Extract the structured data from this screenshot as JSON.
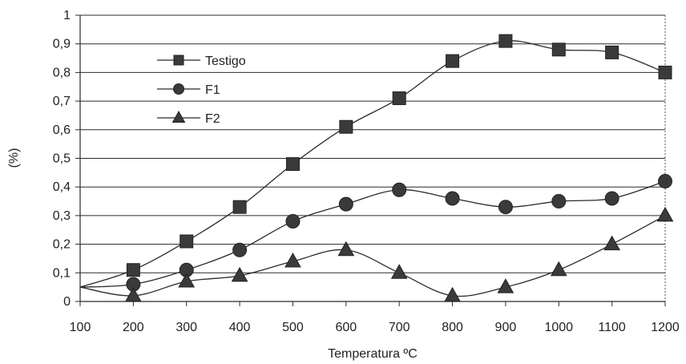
{
  "chart_data": {
    "type": "line",
    "xlabel": "Temperatura ºC",
    "ylabel": "(%)",
    "x": [
      100,
      200,
      300,
      400,
      500,
      600,
      700,
      800,
      900,
      1000,
      1100,
      1200
    ],
    "xlim": [
      100,
      1200
    ],
    "ylim": [
      0,
      1
    ],
    "x_ticks": [
      "100",
      "200",
      "300",
      "400",
      "500",
      "600",
      "700",
      "800",
      "900",
      "1000",
      "1100",
      "1200"
    ],
    "y_ticks": [
      "0",
      "0,1",
      "0,2",
      "0,3",
      "0,4",
      "0,5",
      "0,6",
      "0,7",
      "0,8",
      "0,9",
      "1"
    ],
    "grid": "horizontal",
    "legend_position": "top-left",
    "series": [
      {
        "name": "Testigo",
        "marker": "square",
        "values": [
          0.05,
          0.11,
          0.21,
          0.33,
          0.48,
          0.61,
          0.71,
          0.84,
          0.91,
          0.88,
          0.87,
          0.8
        ]
      },
      {
        "name": "F1",
        "marker": "circle",
        "values": [
          0.05,
          0.06,
          0.11,
          0.18,
          0.28,
          0.34,
          0.39,
          0.36,
          0.33,
          0.35,
          0.36,
          0.42
        ]
      },
      {
        "name": "F2",
        "marker": "triangle",
        "values": [
          0.05,
          0.02,
          0.07,
          0.09,
          0.14,
          0.18,
          0.1,
          0.02,
          0.05,
          0.11,
          0.2,
          0.3
        ]
      }
    ]
  }
}
